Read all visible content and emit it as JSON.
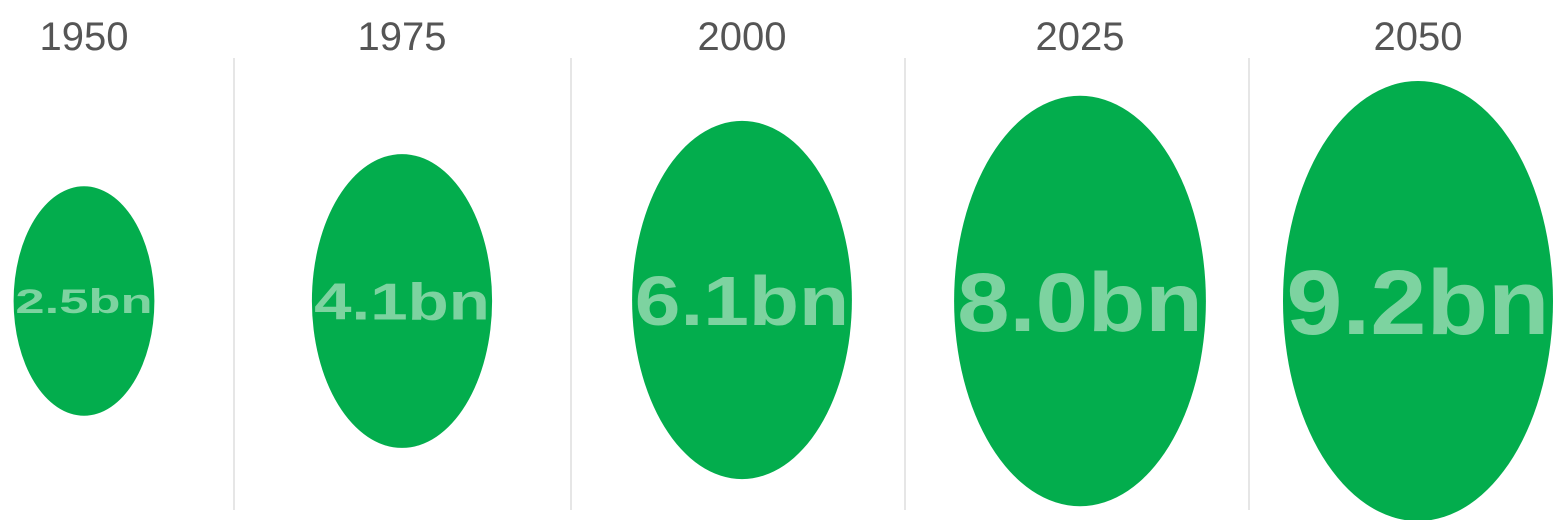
{
  "chart_data": {
    "type": "bubble",
    "categories": [
      "1950",
      "1975",
      "2000",
      "2025",
      "2050"
    ],
    "values": [
      2.5,
      4.1,
      6.1,
      8.0,
      9.2
    ],
    "labels": [
      "2.5bn",
      "4.1bn",
      "6.1bn",
      "8.0bn",
      "9.2bn"
    ],
    "unit": "bn",
    "title": "",
    "xlabel": "",
    "ylabel": "",
    "legend": "none",
    "grid": false
  },
  "colors": {
    "bubble": "#03ad4d",
    "bubble_label": "#7dd3a0",
    "year_label": "#555555",
    "divider": "#e6e6e6"
  }
}
